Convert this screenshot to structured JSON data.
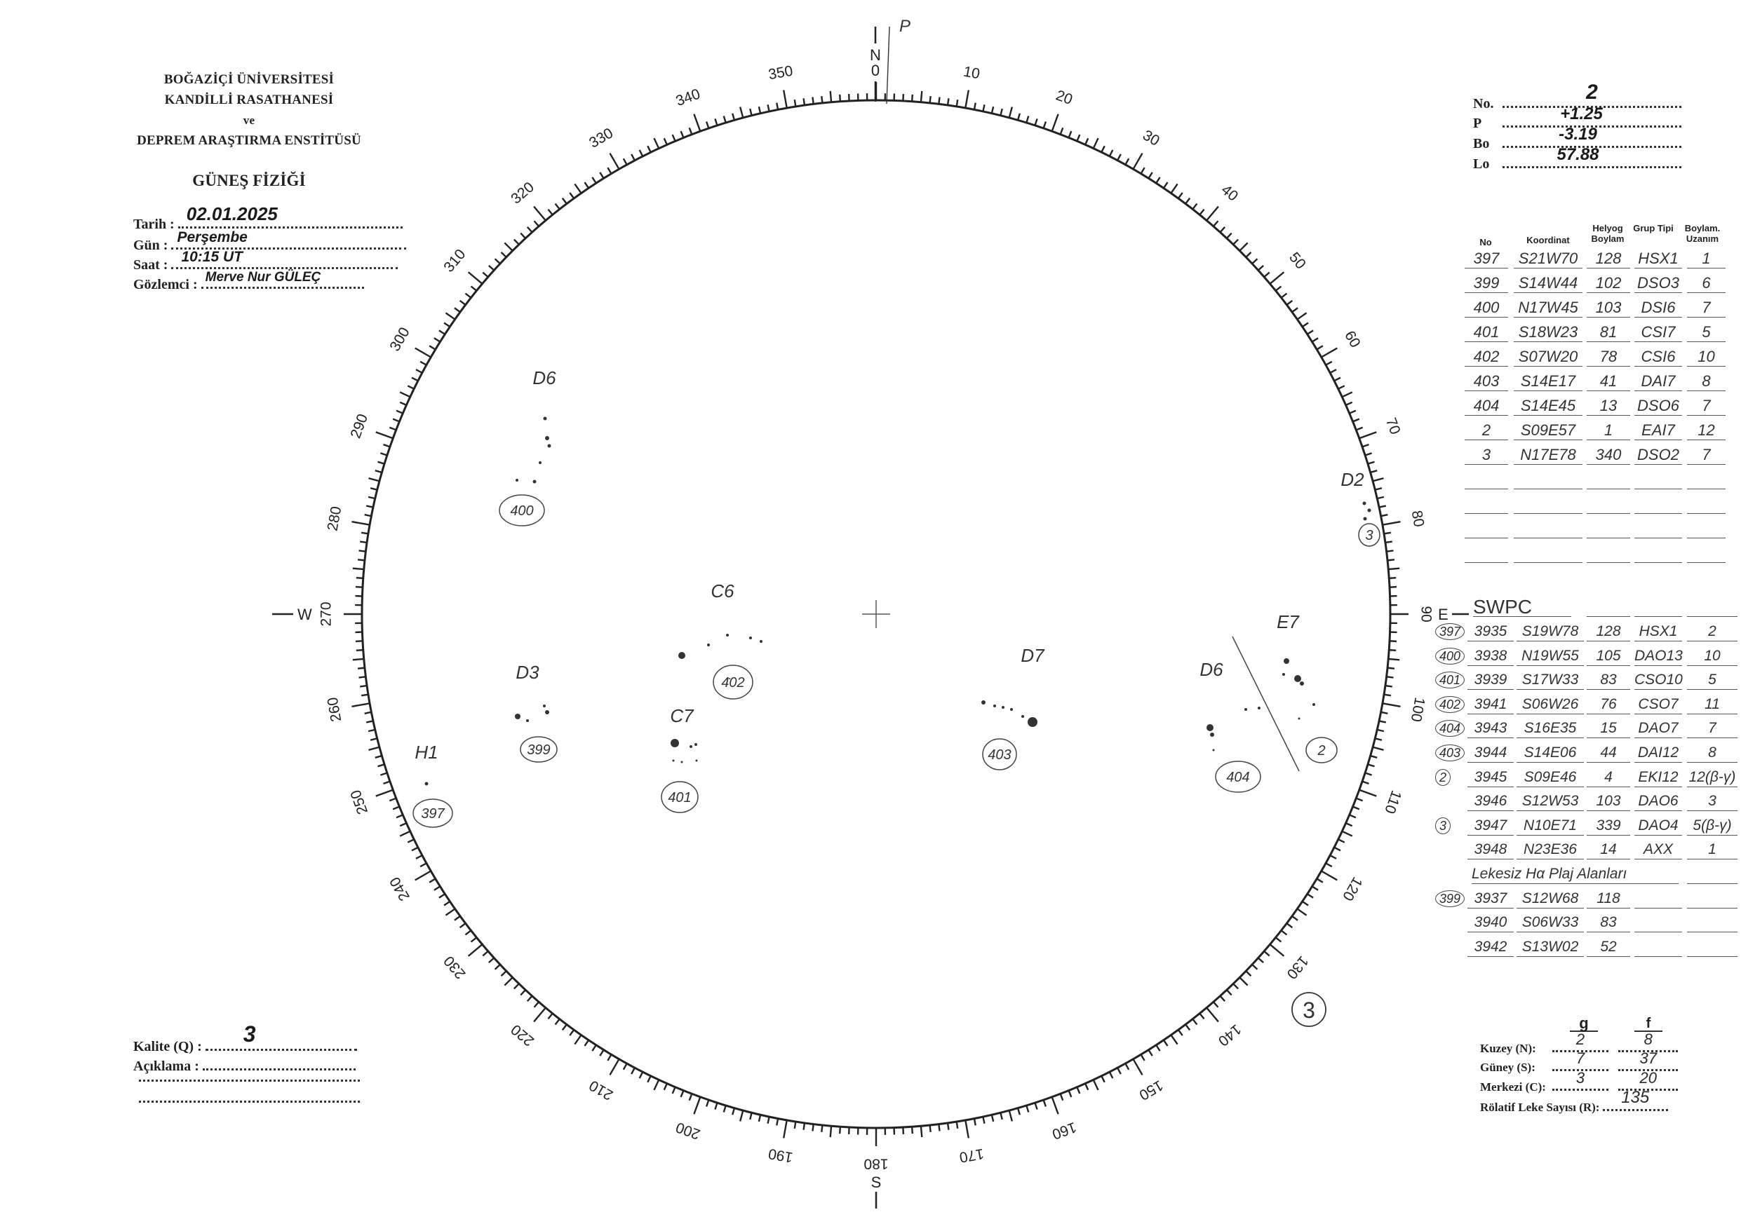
{
  "header": {
    "institution_lines": [
      "BOĞAZİÇİ ÜNİVERSİTESİ",
      "KANDİLLİ RASATHANESİ",
      "ve",
      "DEPREM ARAŞTIRMA ENSTİTÜSÜ"
    ],
    "department": "GÜNEŞ FİZİĞİ"
  },
  "observation": {
    "date_label": "Tarih :",
    "date_value": "02.01.2025",
    "day_label": "Gün :",
    "day_value": "Perşembe",
    "time_label": "Saat :",
    "time_value": "10:15 UT",
    "observer_label": "Gözlemci :",
    "observer_value": "Merve Nur GÜLEÇ"
  },
  "ephemeris": {
    "no_label": "No.",
    "no_value": "2",
    "p_label": "P",
    "p_value": "+1.25",
    "bo_label": "Bo",
    "bo_value": "-3.19",
    "lo_label": "Lo",
    "lo_value": "57.88"
  },
  "table": {
    "headers": [
      "No",
      "Koordinat",
      "Helyog Boylam",
      "Grup Tipi",
      "Boylam. Uzanım"
    ],
    "rows": [
      [
        "397",
        "S21W70",
        "128",
        "HSX1",
        "1"
      ],
      [
        "399",
        "S14W44",
        "102",
        "DSO3",
        "6"
      ],
      [
        "400",
        "N17W45",
        "103",
        "DSI6",
        "7"
      ],
      [
        "401",
        "S18W23",
        "81",
        "CSI7",
        "5"
      ],
      [
        "402",
        "S07W20",
        "78",
        "CSI6",
        "10"
      ],
      [
        "403",
        "S14E17",
        "41",
        "DAI7",
        "8"
      ],
      [
        "404",
        "S14E45",
        "13",
        "DSO6",
        "7"
      ],
      [
        "2",
        "S09E57",
        "1",
        "EAI7",
        "12"
      ],
      [
        "3",
        "N17E78",
        "340",
        "DSO2",
        "7"
      ]
    ],
    "empty_rows": 4
  },
  "swpc": {
    "title": "SWPC",
    "rows": [
      [
        "397",
        "3935",
        "S19W78",
        "128",
        "HSX1",
        "2"
      ],
      [
        "400",
        "3938",
        "N19W55",
        "105",
        "DAO13",
        "10"
      ],
      [
        "401",
        "3939",
        "S17W33",
        "83",
        "CSO10",
        "5"
      ],
      [
        "402",
        "3941",
        "S06W26",
        "76",
        "CSO7",
        "11"
      ],
      [
        "404",
        "3943",
        "S16E35",
        "15",
        "DAO7",
        "7"
      ],
      [
        "403",
        "3944",
        "S14E06",
        "44",
        "DAI12",
        "8"
      ],
      [
        "2",
        "3945",
        "S09E46",
        "4",
        "EKI12",
        "12(β-γ)"
      ],
      [
        "",
        "3946",
        "S12W53",
        "103",
        "DAO6",
        "3"
      ],
      [
        "3",
        "3947",
        "N10E71",
        "339",
        "DAO4",
        "5(β-γ)"
      ],
      [
        "",
        "3948",
        "N23E36",
        "14",
        "AXX",
        "1"
      ]
    ],
    "plage_title": "Lekesiz Hα Plaj Alanları",
    "plage_rows": [
      [
        "399",
        "3937",
        "S12W68",
        "118"
      ],
      [
        "",
        "3940",
        "S06W33",
        "83"
      ],
      [
        "",
        "3942",
        "S13W02",
        "52"
      ]
    ]
  },
  "disk": {
    "degree_labels": [
      "0",
      "10",
      "20",
      "30",
      "40",
      "50",
      "60",
      "70",
      "80",
      "90",
      "100",
      "110",
      "120",
      "130",
      "140",
      "150",
      "160",
      "170",
      "180",
      "190",
      "200",
      "210",
      "220",
      "230",
      "240",
      "250",
      "260",
      "270",
      "280",
      "290",
      "300",
      "310",
      "320",
      "330",
      "340",
      "350"
    ],
    "cardinals": {
      "north": "N",
      "east": "E",
      "south": "S",
      "west": "W",
      "pole": "P"
    },
    "groups": [
      {
        "class": "D6",
        "number": "400"
      },
      {
        "class": "C6",
        "number": "402"
      },
      {
        "class": "D3",
        "number": "399"
      },
      {
        "class": "C7",
        "number": "401"
      },
      {
        "class": "H1",
        "number": "397"
      },
      {
        "class": "D7",
        "number": "403"
      },
      {
        "class": "D6",
        "number": "404"
      },
      {
        "class": "E7",
        "number": "2"
      },
      {
        "class": "D2",
        "number": "3"
      }
    ],
    "margin_note": "3"
  },
  "quality": {
    "quality_label": "Kalite (Q) :",
    "quality_value": "3",
    "remarks_label": "Açıklama :"
  },
  "counts": {
    "g_header": "g",
    "f_header": "f",
    "north_label": "Kuzey (N):",
    "north_g": "2",
    "north_f": "8",
    "south_label": "Güney (S):",
    "south_g": "7",
    "south_f": "37",
    "center_label": "Merkezi (C):",
    "center_g": "3",
    "center_f": "20",
    "relative_label": "Rölatif Leke Sayısı (R):",
    "relative_value": "135"
  }
}
